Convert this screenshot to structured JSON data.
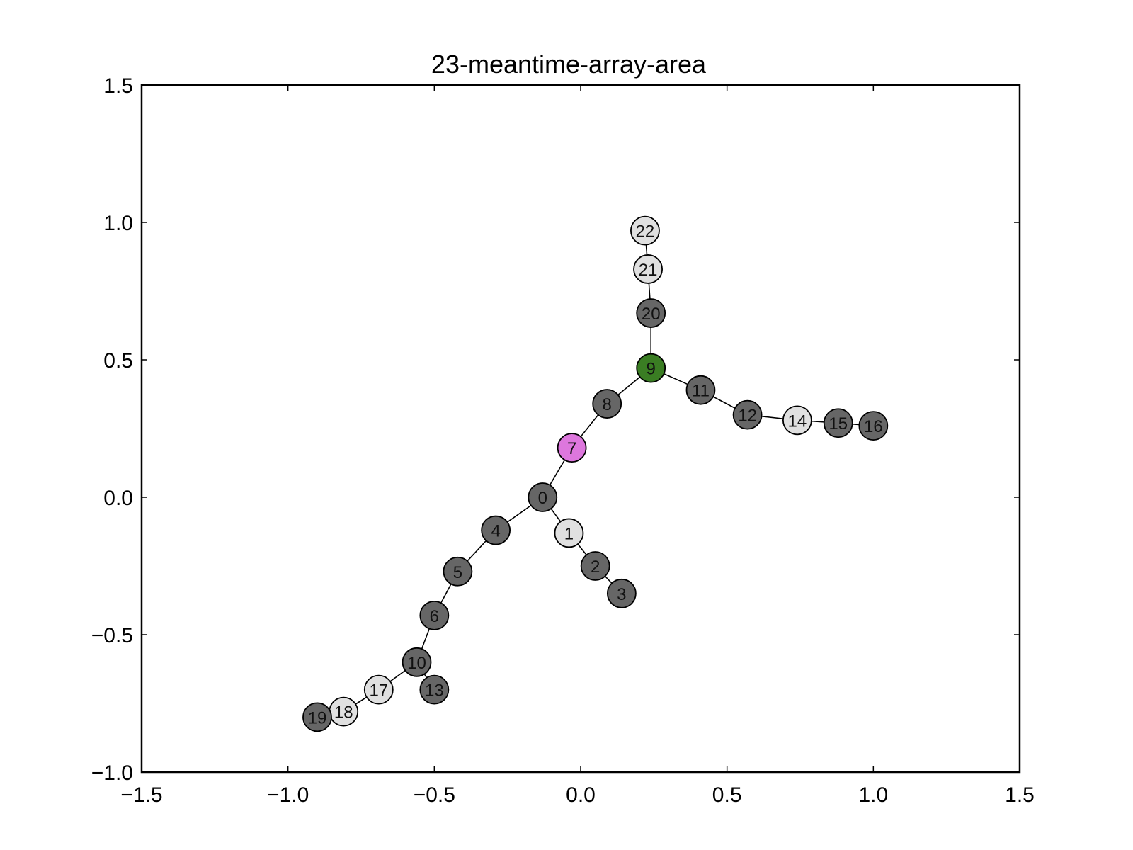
{
  "chart_data": {
    "type": "scatter",
    "title": "23-meantime-array-area",
    "xlabel": "",
    "ylabel": "",
    "xlim": [
      -1.5,
      1.5
    ],
    "ylim": [
      -1.0,
      1.5
    ],
    "xticks": [
      -1.5,
      -1.0,
      -0.5,
      0.0,
      0.5,
      1.0,
      1.5
    ],
    "yticks": [
      -1.0,
      -0.5,
      0.0,
      0.5,
      1.0,
      1.5
    ],
    "xtick_labels": [
      "−1.5",
      "−1.0",
      "−0.5",
      "0.0",
      "0.5",
      "1.0",
      "1.5"
    ],
    "ytick_labels": [
      "−1.0",
      "−0.5",
      "0.0",
      "0.5",
      "1.0",
      "1.5"
    ],
    "grid": false,
    "colors": {
      "dark": "#666666",
      "light": "#e0e0e0",
      "purple": "#dd77dd",
      "green": "#3a7d23"
    },
    "nodes": [
      {
        "id": "0",
        "x": -0.13,
        "y": 0.0,
        "color": "dark"
      },
      {
        "id": "1",
        "x": -0.04,
        "y": -0.13,
        "color": "light"
      },
      {
        "id": "2",
        "x": 0.05,
        "y": -0.25,
        "color": "dark"
      },
      {
        "id": "3",
        "x": 0.14,
        "y": -0.35,
        "color": "dark"
      },
      {
        "id": "4",
        "x": -0.29,
        "y": -0.12,
        "color": "dark"
      },
      {
        "id": "5",
        "x": -0.42,
        "y": -0.27,
        "color": "dark"
      },
      {
        "id": "6",
        "x": -0.5,
        "y": -0.43,
        "color": "dark"
      },
      {
        "id": "7",
        "x": -0.03,
        "y": 0.18,
        "color": "purple"
      },
      {
        "id": "8",
        "x": 0.09,
        "y": 0.34,
        "color": "dark"
      },
      {
        "id": "9",
        "x": 0.24,
        "y": 0.47,
        "color": "green"
      },
      {
        "id": "10",
        "x": -0.56,
        "y": -0.6,
        "color": "dark"
      },
      {
        "id": "11",
        "x": 0.41,
        "y": 0.39,
        "color": "dark"
      },
      {
        "id": "12",
        "x": 0.57,
        "y": 0.3,
        "color": "dark"
      },
      {
        "id": "13",
        "x": -0.5,
        "y": -0.7,
        "color": "dark"
      },
      {
        "id": "14",
        "x": 0.74,
        "y": 0.28,
        "color": "light"
      },
      {
        "id": "15",
        "x": 0.88,
        "y": 0.27,
        "color": "dark"
      },
      {
        "id": "16",
        "x": 1.0,
        "y": 0.26,
        "color": "dark"
      },
      {
        "id": "17",
        "x": -0.69,
        "y": -0.7,
        "color": "light"
      },
      {
        "id": "18",
        "x": -0.81,
        "y": -0.78,
        "color": "light"
      },
      {
        "id": "19",
        "x": -0.9,
        "y": -0.8,
        "color": "dark"
      },
      {
        "id": "20",
        "x": 0.24,
        "y": 0.67,
        "color": "dark"
      },
      {
        "id": "21",
        "x": 0.23,
        "y": 0.83,
        "color": "light"
      },
      {
        "id": "22",
        "x": 0.22,
        "y": 0.97,
        "color": "light"
      }
    ],
    "edges": [
      [
        "0",
        "1"
      ],
      [
        "1",
        "2"
      ],
      [
        "2",
        "3"
      ],
      [
        "0",
        "4"
      ],
      [
        "4",
        "5"
      ],
      [
        "5",
        "6"
      ],
      [
        "6",
        "10"
      ],
      [
        "10",
        "13"
      ],
      [
        "10",
        "17"
      ],
      [
        "17",
        "18"
      ],
      [
        "18",
        "19"
      ],
      [
        "0",
        "7"
      ],
      [
        "7",
        "8"
      ],
      [
        "8",
        "9"
      ],
      [
        "9",
        "11"
      ],
      [
        "11",
        "12"
      ],
      [
        "12",
        "14"
      ],
      [
        "14",
        "15"
      ],
      [
        "15",
        "16"
      ],
      [
        "9",
        "20"
      ],
      [
        "20",
        "21"
      ],
      [
        "21",
        "22"
      ]
    ]
  }
}
